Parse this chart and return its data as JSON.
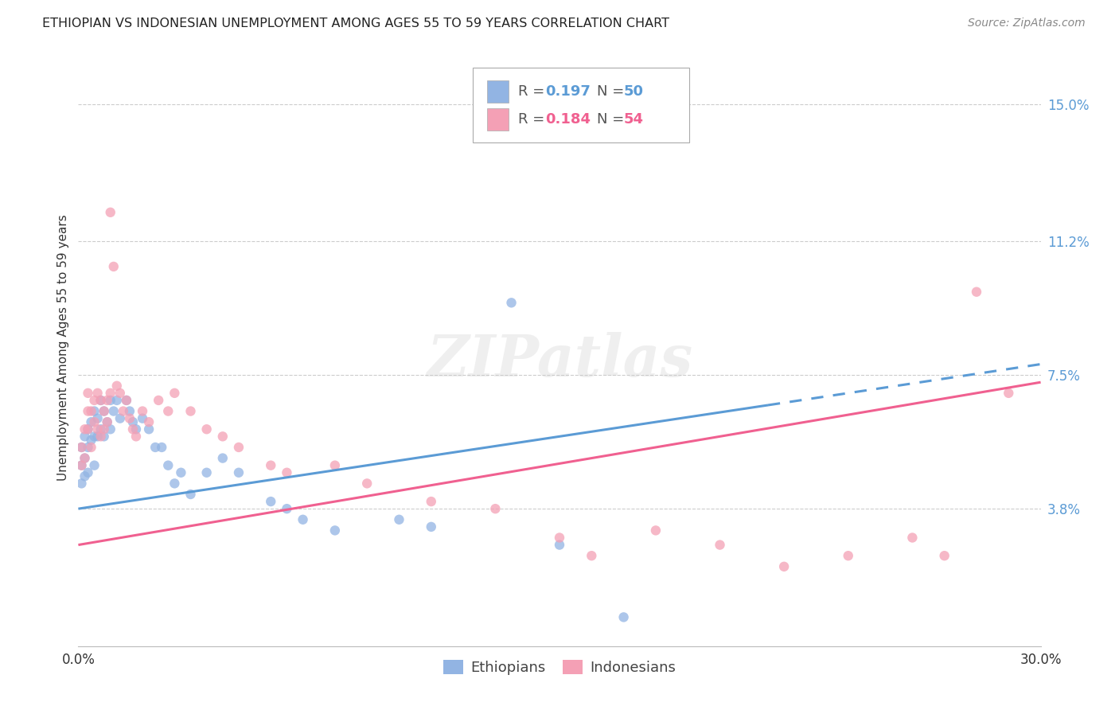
{
  "title": "ETHIOPIAN VS INDONESIAN UNEMPLOYMENT AMONG AGES 55 TO 59 YEARS CORRELATION CHART",
  "source": "Source: ZipAtlas.com",
  "ylabel": "Unemployment Among Ages 55 to 59 years",
  "xlim": [
    0.0,
    0.3
  ],
  "ylim": [
    0.0,
    0.165
  ],
  "right_ytick_labels": [
    "3.8%",
    "7.5%",
    "11.2%",
    "15.0%"
  ],
  "right_ytick_values": [
    0.038,
    0.075,
    0.112,
    0.15
  ],
  "ethiopian_color": "#92b4e3",
  "indonesian_color": "#f4a0b5",
  "ethiopian_line_color": "#5b9bd5",
  "indonesian_line_color": "#f06090",
  "eth_R_val": "0.197",
  "eth_N_val": "50",
  "ind_R_val": "0.184",
  "ind_N_val": "54",
  "ethiopians_x": [
    0.001,
    0.001,
    0.001,
    0.002,
    0.002,
    0.002,
    0.003,
    0.003,
    0.003,
    0.004,
    0.004,
    0.005,
    0.005,
    0.005,
    0.006,
    0.006,
    0.007,
    0.007,
    0.008,
    0.008,
    0.009,
    0.01,
    0.01,
    0.011,
    0.012,
    0.013,
    0.015,
    0.016,
    0.017,
    0.018,
    0.02,
    0.022,
    0.024,
    0.026,
    0.028,
    0.03,
    0.032,
    0.035,
    0.04,
    0.045,
    0.05,
    0.06,
    0.065,
    0.07,
    0.08,
    0.1,
    0.11,
    0.135,
    0.15,
    0.17
  ],
  "ethiopians_y": [
    0.055,
    0.05,
    0.045,
    0.058,
    0.052,
    0.047,
    0.06,
    0.055,
    0.048,
    0.062,
    0.057,
    0.065,
    0.058,
    0.05,
    0.063,
    0.058,
    0.068,
    0.06,
    0.065,
    0.058,
    0.062,
    0.068,
    0.06,
    0.065,
    0.068,
    0.063,
    0.068,
    0.065,
    0.062,
    0.06,
    0.063,
    0.06,
    0.055,
    0.055,
    0.05,
    0.045,
    0.048,
    0.042,
    0.048,
    0.052,
    0.048,
    0.04,
    0.038,
    0.035,
    0.032,
    0.035,
    0.033,
    0.095,
    0.028,
    0.008
  ],
  "indonesians_x": [
    0.001,
    0.001,
    0.002,
    0.002,
    0.003,
    0.003,
    0.003,
    0.004,
    0.004,
    0.005,
    0.005,
    0.006,
    0.006,
    0.007,
    0.007,
    0.008,
    0.008,
    0.009,
    0.009,
    0.01,
    0.01,
    0.011,
    0.012,
    0.013,
    0.014,
    0.015,
    0.016,
    0.017,
    0.018,
    0.02,
    0.022,
    0.025,
    0.028,
    0.03,
    0.035,
    0.04,
    0.045,
    0.05,
    0.06,
    0.065,
    0.08,
    0.09,
    0.11,
    0.13,
    0.15,
    0.16,
    0.18,
    0.2,
    0.22,
    0.24,
    0.26,
    0.27,
    0.28,
    0.29
  ],
  "indonesians_y": [
    0.055,
    0.05,
    0.06,
    0.052,
    0.065,
    0.07,
    0.06,
    0.065,
    0.055,
    0.068,
    0.062,
    0.07,
    0.06,
    0.068,
    0.058,
    0.065,
    0.06,
    0.068,
    0.062,
    0.12,
    0.07,
    0.105,
    0.072,
    0.07,
    0.065,
    0.068,
    0.063,
    0.06,
    0.058,
    0.065,
    0.062,
    0.068,
    0.065,
    0.07,
    0.065,
    0.06,
    0.058,
    0.055,
    0.05,
    0.048,
    0.05,
    0.045,
    0.04,
    0.038,
    0.03,
    0.025,
    0.032,
    0.028,
    0.022,
    0.025,
    0.03,
    0.025,
    0.098,
    0.07
  ]
}
